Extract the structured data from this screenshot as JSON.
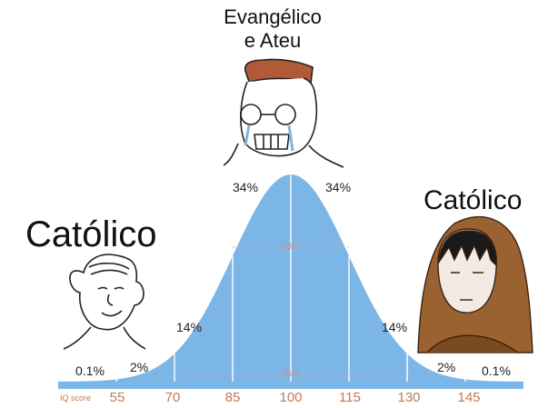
{
  "labels": {
    "top": "Evangélico\ne Ateu",
    "left": "Católico",
    "right": "Católico"
  },
  "chart_data": {
    "type": "area",
    "distribution": "normal",
    "mean": 100,
    "sd": 15,
    "xlabel": "IQ score",
    "x_ticks": [
      "55",
      "70",
      "85",
      "100",
      "115",
      "130",
      "145"
    ],
    "band_percentages": [
      {
        "label": "0.1%",
        "range": [
          40,
          55
        ]
      },
      {
        "label": "2%",
        "range": [
          55,
          70
        ]
      },
      {
        "label": "14%",
        "range": [
          70,
          85
        ]
      },
      {
        "label": "34%",
        "range": [
          85,
          100
        ]
      },
      {
        "label": "34%",
        "range": [
          100,
          115
        ]
      },
      {
        "label": "14%",
        "range": [
          115,
          130
        ]
      },
      {
        "label": "2%",
        "range": [
          130,
          145
        ]
      },
      {
        "label": "0.1%",
        "range": [
          145,
          160
        ]
      }
    ],
    "inner_labels": [
      "68%",
      "95%"
    ],
    "color": "#7cb6e6"
  }
}
